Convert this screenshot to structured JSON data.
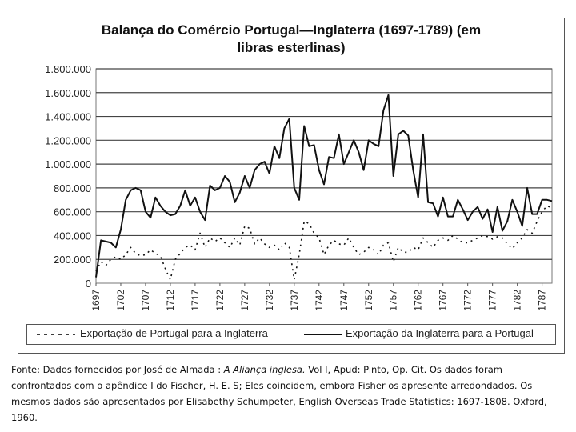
{
  "chart_data": {
    "type": "line",
    "title_line1": "Balança do Comércio Portugal—Inglaterra (1697-1789) (em",
    "title_line2": "libras esterlinas)",
    "ylim": [
      0,
      1800000
    ],
    "yticks": [
      "0",
      "200.000",
      "400.000",
      "600.000",
      "800.000",
      "1.000.000",
      "1.200.000",
      "1.400.000",
      "1.600.000",
      "1.800.000"
    ],
    "ytick_values": [
      0,
      200000,
      400000,
      600000,
      800000,
      1000000,
      1200000,
      1400000,
      1600000,
      1800000
    ],
    "xlim": [
      1697,
      1789
    ],
    "xticks": [
      "1697",
      "1702",
      "1707",
      "1712",
      "1717",
      "1722",
      "1727",
      "1732",
      "1737",
      "1742",
      "1747",
      "1752",
      "1757",
      "1762",
      "1767",
      "1772",
      "1777",
      "1782",
      "1787"
    ],
    "grid": "horizontal",
    "legend_position": "bottom",
    "series": [
      {
        "name": "Exportação de Portugal para a Inglaterra",
        "style": "dotted",
        "x": [
          1697,
          1698,
          1699,
          1700,
          1701,
          1702,
          1703,
          1704,
          1705,
          1706,
          1707,
          1708,
          1709,
          1710,
          1711,
          1712,
          1713,
          1714,
          1715,
          1716,
          1717,
          1718,
          1719,
          1720,
          1721,
          1722,
          1723,
          1724,
          1725,
          1726,
          1727,
          1728,
          1729,
          1730,
          1731,
          1732,
          1733,
          1734,
          1735,
          1736,
          1737,
          1738,
          1739,
          1740,
          1741,
          1742,
          1743,
          1744,
          1745,
          1746,
          1747,
          1748,
          1749,
          1750,
          1751,
          1752,
          1753,
          1754,
          1755,
          1756,
          1757,
          1758,
          1759,
          1760,
          1761,
          1762,
          1763,
          1764,
          1765,
          1766,
          1767,
          1768,
          1769,
          1770,
          1771,
          1772,
          1773,
          1774,
          1775,
          1776,
          1777,
          1778,
          1779,
          1780,
          1781,
          1782,
          1783,
          1784,
          1785,
          1786,
          1787,
          1788,
          1789
        ],
        "values": [
          100000,
          180000,
          150000,
          200000,
          220000,
          200000,
          240000,
          300000,
          250000,
          230000,
          240000,
          280000,
          250000,
          230000,
          120000,
          30000,
          200000,
          250000,
          300000,
          320000,
          280000,
          420000,
          300000,
          380000,
          350000,
          380000,
          340000,
          300000,
          380000,
          320000,
          480000,
          460000,
          330000,
          380000,
          330000,
          300000,
          320000,
          280000,
          340000,
          300000,
          30000,
          240000,
          520000,
          500000,
          420000,
          380000,
          240000,
          320000,
          360000,
          330000,
          320000,
          380000,
          300000,
          240000,
          260000,
          300000,
          280000,
          240000,
          320000,
          340000,
          180000,
          300000,
          260000,
          260000,
          300000,
          280000,
          380000,
          340000,
          300000,
          360000,
          380000,
          360000,
          400000,
          370000,
          340000,
          340000,
          360000,
          380000,
          400000,
          390000,
          370000,
          390000,
          380000,
          330000,
          290000,
          340000,
          380000,
          450000,
          420000,
          520000,
          600000,
          650000,
          630000
        ]
      },
      {
        "name": "Exportação da Inglaterra para a Portugal",
        "style": "solid",
        "x": [
          1697,
          1698,
          1699,
          1700,
          1701,
          1702,
          1703,
          1704,
          1705,
          1706,
          1707,
          1708,
          1709,
          1710,
          1711,
          1712,
          1713,
          1714,
          1715,
          1716,
          1717,
          1718,
          1719,
          1720,
          1721,
          1722,
          1723,
          1724,
          1725,
          1726,
          1727,
          1728,
          1729,
          1730,
          1731,
          1732,
          1733,
          1734,
          1735,
          1736,
          1737,
          1738,
          1739,
          1740,
          1741,
          1742,
          1743,
          1744,
          1745,
          1746,
          1747,
          1748,
          1749,
          1750,
          1751,
          1752,
          1753,
          1754,
          1755,
          1756,
          1757,
          1758,
          1759,
          1760,
          1761,
          1762,
          1763,
          1764,
          1765,
          1766,
          1767,
          1768,
          1769,
          1770,
          1771,
          1772,
          1773,
          1774,
          1775,
          1776,
          1777,
          1778,
          1779,
          1780,
          1781,
          1782,
          1783,
          1784,
          1785,
          1786,
          1787,
          1788,
          1789
        ],
        "values": [
          50000,
          360000,
          350000,
          340000,
          300000,
          450000,
          700000,
          780000,
          800000,
          780000,
          600000,
          550000,
          720000,
          650000,
          600000,
          570000,
          580000,
          650000,
          780000,
          650000,
          720000,
          600000,
          530000,
          820000,
          780000,
          800000,
          900000,
          850000,
          680000,
          760000,
          900000,
          800000,
          950000,
          1000000,
          1020000,
          920000,
          1150000,
          1050000,
          1300000,
          1380000,
          800000,
          700000,
          1320000,
          1150000,
          1160000,
          950000,
          830000,
          1060000,
          1050000,
          1250000,
          1000000,
          1100000,
          1200000,
          1100000,
          950000,
          1200000,
          1170000,
          1150000,
          1450000,
          1580000,
          900000,
          1250000,
          1280000,
          1240000,
          950000,
          720000,
          1250000,
          680000,
          670000,
          560000,
          720000,
          560000,
          560000,
          700000,
          620000,
          530000,
          600000,
          640000,
          540000,
          620000,
          430000,
          640000,
          440000,
          520000,
          700000,
          600000,
          480000,
          800000,
          580000,
          580000,
          700000,
          700000,
          690000
        ]
      }
    ]
  },
  "caption": {
    "p1": "Fonte: Dados fornecidos por José de Almada : ",
    "italic": "A Aliança inglesa.",
    "p2": " Vol I, Apud: Pinto, Op. Cit. Os dados foram confrontados com o apêndice I do Fischer, H. E. S; Eles coincidem, embora Fisher os apresente arredondados.  Os mesmos dados são apresentados por Elisabethy Schumpeter, English Overseas Trade Statistics: 1697-1808. Oxford, 1960."
  }
}
